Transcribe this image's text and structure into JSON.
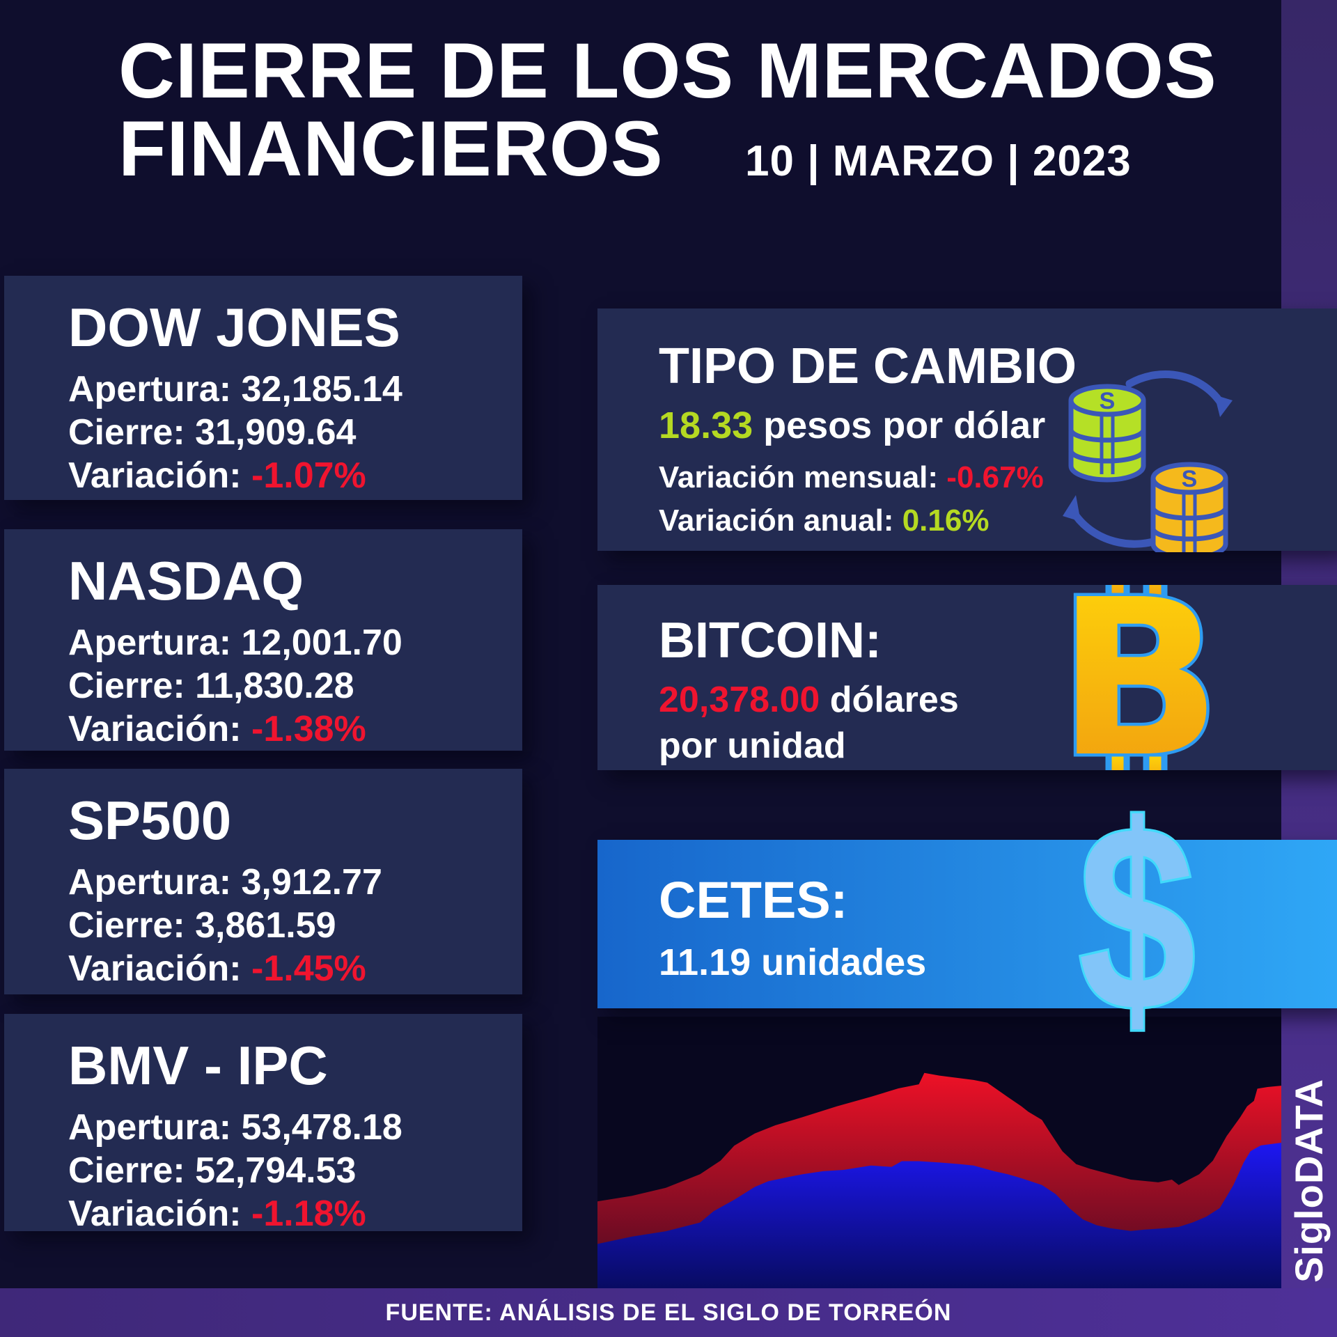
{
  "header": {
    "title_line1": "CIERRE DE LOS MERCADOS",
    "title_line2": "FINANCIEROS",
    "date": "10 | MARZO | 2023"
  },
  "labels": {
    "apertura": "Apertura:",
    "cierre": "Cierre:",
    "variacion": "Variación:"
  },
  "indices": [
    {
      "name": "DOW JONES",
      "apertura": "32,185.14",
      "cierre": "31,909.64",
      "variacion": "-1.07%"
    },
    {
      "name": "NASDAQ",
      "apertura": "12,001.70",
      "cierre": "11,830.28",
      "variacion": "-1.38%"
    },
    {
      "name": "SP500",
      "apertura": "3,912.77",
      "cierre": "3,861.59",
      "variacion": "-1.45%"
    },
    {
      "name": "BMV - IPC",
      "apertura": "53,478.18",
      "cierre": "52,794.53",
      "variacion": "-1.18%"
    }
  ],
  "exchange": {
    "title": "TIPO DE CAMBIO",
    "rate": "18.33",
    "rate_suffix": " pesos por dólar",
    "monthly_label": "Variación mensual:",
    "monthly_value": "-0.67%",
    "annual_label": "Variación anual:",
    "annual_value": "0.16%"
  },
  "bitcoin": {
    "title": "BITCOIN:",
    "price": "20,378.00",
    "price_suffix": " dólares",
    "line2": "por unidad"
  },
  "cetes": {
    "title": "CETES:",
    "value": "11.19 unidades"
  },
  "footer": {
    "source": "FUENTE: ANÁLISIS DE EL SIGLO DE TORREÓN",
    "brand": "SigloDATA"
  },
  "icons": {
    "bitcoin_glyph": "B",
    "dollar_glyph": "$",
    "coin_glyph": "S"
  },
  "colors": {
    "page-bg": "#0f0e2d",
    "panel-bg": "#232b52",
    "chart-bg": "#08071f",
    "strip-top": "#372767",
    "strip-bottom": "#4e3193",
    "footer-left": "#3f2879",
    "footer-right": "#4e3098",
    "accent-red": "#f0142f",
    "accent-green": "#b5d922",
    "text-white": "#ffffff",
    "cetes-left": "#1766cb",
    "cetes-right": "#2fa7f6",
    "arrow-blue": "#3b57b8",
    "coin-green": "#b5e026",
    "coin-gold": "#f5b91c",
    "btc-stroke": "#2e9cf1",
    "btc-gold-top": "#ffd70a",
    "btc-gold-bottom": "#f09a10",
    "dollar-fill": "#82c5f9",
    "dollar-stroke": "#41dafb"
  },
  "chart_data": {
    "type": "area",
    "title": "",
    "xlabel": "",
    "ylabel": "",
    "grid": false,
    "legend": false,
    "note": "Stylized stacked market-trend area chart with no axes, ticks or labels; coordinates are normalized fractions of the chart panel (x left-to-right 0-1, y top-to-bottom 0-1).",
    "x_range": [
      0,
      1
    ],
    "y_range": [
      0,
      1
    ],
    "series": [
      {
        "name": "red-area",
        "fill_top": "#ee1126",
        "fill_bottom": "#3c0a22",
        "points": [
          [
            0,
            0.68
          ],
          [
            0.05,
            0.66
          ],
          [
            0.1,
            0.63
          ],
          [
            0.15,
            0.58
          ],
          [
            0.18,
            0.53
          ],
          [
            0.2,
            0.475
          ],
          [
            0.23,
            0.43
          ],
          [
            0.26,
            0.4
          ],
          [
            0.3,
            0.37
          ],
          [
            0.35,
            0.33
          ],
          [
            0.4,
            0.295
          ],
          [
            0.44,
            0.264
          ],
          [
            0.47,
            0.249
          ],
          [
            0.478,
            0.207
          ],
          [
            0.5,
            0.217
          ],
          [
            0.55,
            0.233
          ],
          [
            0.57,
            0.243
          ],
          [
            0.6,
            0.296
          ],
          [
            0.62,
            0.33
          ],
          [
            0.63,
            0.35
          ],
          [
            0.65,
            0.38
          ],
          [
            0.66,
            0.42
          ],
          [
            0.68,
            0.496
          ],
          [
            0.7,
            0.543
          ],
          [
            0.72,
            0.56
          ],
          [
            0.75,
            0.58
          ],
          [
            0.78,
            0.6
          ],
          [
            0.82,
            0.61
          ],
          [
            0.84,
            0.6
          ],
          [
            0.85,
            0.62
          ],
          [
            0.88,
            0.58
          ],
          [
            0.9,
            0.53
          ],
          [
            0.92,
            0.44
          ],
          [
            0.94,
            0.37
          ],
          [
            0.95,
            0.33
          ],
          [
            0.96,
            0.31
          ],
          [
            0.965,
            0.265
          ],
          [
            0.98,
            0.259
          ],
          [
            1,
            0.254
          ]
        ]
      },
      {
        "name": "blue-area",
        "fill_top": "#1d17f2",
        "fill_bottom": "#060a55",
        "points": [
          [
            0,
            0.837
          ],
          [
            0.05,
            0.81
          ],
          [
            0.1,
            0.79
          ],
          [
            0.15,
            0.758
          ],
          [
            0.17,
            0.716
          ],
          [
            0.2,
            0.674
          ],
          [
            0.23,
            0.627
          ],
          [
            0.25,
            0.606
          ],
          [
            0.28,
            0.59
          ],
          [
            0.3,
            0.58
          ],
          [
            0.33,
            0.569
          ],
          [
            0.36,
            0.564
          ],
          [
            0.4,
            0.548
          ],
          [
            0.43,
            0.553
          ],
          [
            0.445,
            0.532
          ],
          [
            0.47,
            0.532
          ],
          [
            0.5,
            0.537
          ],
          [
            0.53,
            0.543
          ],
          [
            0.55,
            0.548
          ],
          [
            0.58,
            0.569
          ],
          [
            0.6,
            0.58
          ],
          [
            0.62,
            0.595
          ],
          [
            0.65,
            0.62
          ],
          [
            0.67,
            0.653
          ],
          [
            0.69,
            0.705
          ],
          [
            0.71,
            0.747
          ],
          [
            0.73,
            0.768
          ],
          [
            0.75,
            0.779
          ],
          [
            0.78,
            0.789
          ],
          [
            0.8,
            0.784
          ],
          [
            0.83,
            0.779
          ],
          [
            0.85,
            0.774
          ],
          [
            0.87,
            0.758
          ],
          [
            0.89,
            0.737
          ],
          [
            0.91,
            0.705
          ],
          [
            0.93,
            0.62
          ],
          [
            0.945,
            0.537
          ],
          [
            0.955,
            0.495
          ],
          [
            0.97,
            0.474
          ],
          [
            1,
            0.464
          ]
        ]
      }
    ]
  }
}
